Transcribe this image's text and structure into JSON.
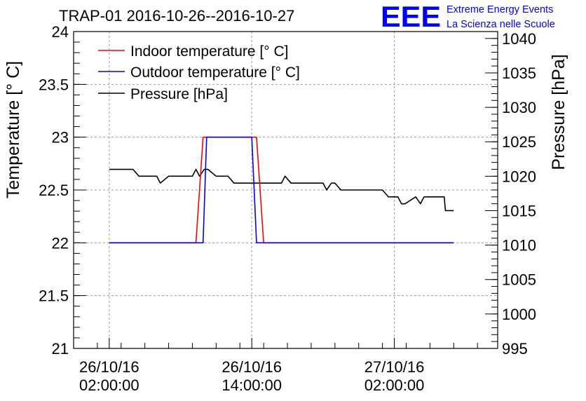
{
  "chart_data": {
    "type": "line",
    "title": "TRAP-01 2016-10-26--2016-10-27",
    "ylabel": "Temperature [° C]",
    "y2label": "Pressure [hPa]",
    "xlabel": "",
    "ylim": [
      21,
      24
    ],
    "y2lim": [
      995,
      1041
    ],
    "y_ticks": [
      "21",
      "21.5",
      "22",
      "22.5",
      "23",
      "23.5",
      "24"
    ],
    "y2_ticks": [
      "995",
      "1000",
      "1005",
      "1010",
      "1015",
      "1020",
      "1025",
      "1030",
      "1035",
      "1040"
    ],
    "x_unit": "hours since 2016-10-25 23:00",
    "xlim": [
      0,
      35.7
    ],
    "x_ticks": [
      {
        "x": 3,
        "date": "26/10/16",
        "time": "02:00:00"
      },
      {
        "x": 15,
        "date": "26/10/16",
        "time": "14:00:00"
      },
      {
        "x": 27,
        "date": "27/10/16",
        "time": "02:00:00"
      }
    ],
    "grid": true,
    "legend_position": "top-left",
    "series": [
      {
        "name": "Indoor temperature [° C]",
        "color": "#ff0000",
        "axis": "left",
        "x": [
          3,
          10.3,
          10.9,
          15.4,
          16.0,
          32.0
        ],
        "y": [
          22,
          22,
          23,
          23,
          22,
          22
        ]
      },
      {
        "name": "Outdoor temperature [° C]",
        "color": "#0000ff",
        "axis": "left",
        "x": [
          3,
          10.9,
          11.2,
          15.0,
          15.4,
          32.0
        ],
        "y": [
          22,
          22,
          23,
          23,
          22,
          22
        ]
      },
      {
        "name": "Pressure [hPa]",
        "color": "#000000",
        "axis": "right",
        "x": [
          3,
          5.0,
          5.5,
          7.0,
          7.3,
          8.0,
          10.0,
          10.3,
          10.6,
          11.0,
          11.3,
          12.0,
          13.0,
          13.5,
          17.5,
          17.8,
          18.3,
          21.0,
          21.3,
          21.7,
          22.0,
          22.5,
          25.0,
          26.0,
          26.5,
          27.3,
          27.6,
          27.9,
          28.8,
          29.2,
          29.5,
          29.8,
          31.0,
          31.2,
          31.3,
          31.9,
          32.0
        ],
        "y": [
          1021,
          1021,
          1020,
          1020,
          1019,
          1020,
          1020,
          1021,
          1020,
          1021,
          1021,
          1020,
          1020,
          1019,
          1019,
          1020,
          1019,
          1019,
          1018,
          1019,
          1019,
          1018,
          1018,
          1018,
          1017,
          1017,
          1016,
          1016,
          1017,
          1016,
          1017,
          1017,
          1017,
          1017,
          1015,
          1015,
          1015
        ]
      }
    ]
  },
  "logo": {
    "mark": "EEE",
    "line1": "Extreme Energy Events",
    "line2": "La Scienza nelle Scuole",
    "color": "#0000ff"
  }
}
